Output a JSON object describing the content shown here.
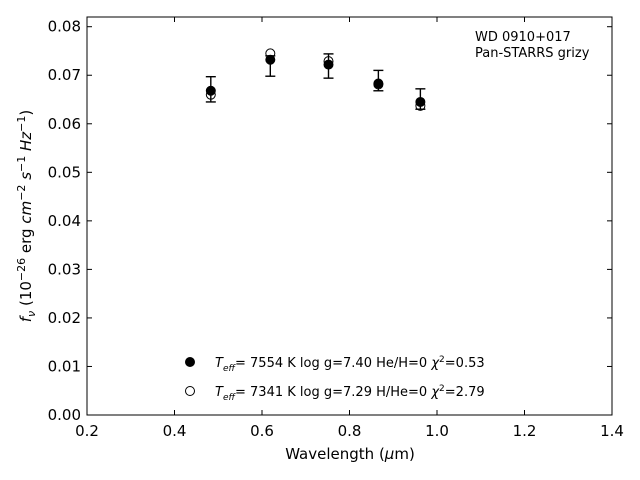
{
  "chart_data": {
    "type": "scatter",
    "title": "",
    "xlabel": "Wavelength (μm)",
    "ylabel": "fν (10⁻²⁶ erg cm⁻² s⁻¹ Hz⁻¹)",
    "xlim": [
      0.2,
      1.4
    ],
    "ylim": [
      0.0,
      0.082
    ],
    "xticks": [
      0.2,
      0.4,
      0.6,
      0.8,
      1.0,
      1.2,
      1.4
    ],
    "xtick_labels": [
      "0.2",
      "0.4",
      "0.6",
      "0.8",
      "1.0",
      "1.2",
      "1.4"
    ],
    "yticks": [
      0.0,
      0.01,
      0.02,
      0.03,
      0.04,
      0.05,
      0.06,
      0.07,
      0.08
    ],
    "ytick_labels": [
      "0.00",
      "0.01",
      "0.02",
      "0.03",
      "0.04",
      "0.05",
      "0.06",
      "0.07",
      "0.08"
    ],
    "grid": false,
    "annotation": [
      "WD 0910+017",
      "Pan-STARRS grizy"
    ],
    "observed": {
      "x": [
        0.483,
        0.619,
        0.752,
        0.866,
        0.962
      ],
      "y": [
        0.0671,
        0.0719,
        0.0719,
        0.0689,
        0.0651
      ],
      "yerr": [
        0.0026,
        0.0021,
        0.0025,
        0.0021,
        0.0021
      ]
    },
    "series": [
      {
        "marker": "filled-circle",
        "x": [
          0.483,
          0.619,
          0.752,
          0.866,
          0.962
        ],
        "y": [
          0.0668,
          0.0732,
          0.0722,
          0.0683,
          0.0645
        ]
      },
      {
        "marker": "open-circle",
        "x": [
          0.483,
          0.619,
          0.752,
          0.866,
          0.962
        ],
        "y": [
          0.066,
          0.0745,
          0.0729,
          0.0681,
          0.0637
        ]
      }
    ],
    "legend": [
      {
        "marker": "filled-circle",
        "teff": "7554 K",
        "logg": "log g=7.40",
        "comp": "He/H=0",
        "chi2": "=0.53"
      },
      {
        "marker": "open-circle",
        "teff": "7341 K",
        "logg": "log g=7.29",
        "comp": "H/He=0",
        "chi2": "=2.79"
      }
    ],
    "legend_position": "lower-center"
  }
}
